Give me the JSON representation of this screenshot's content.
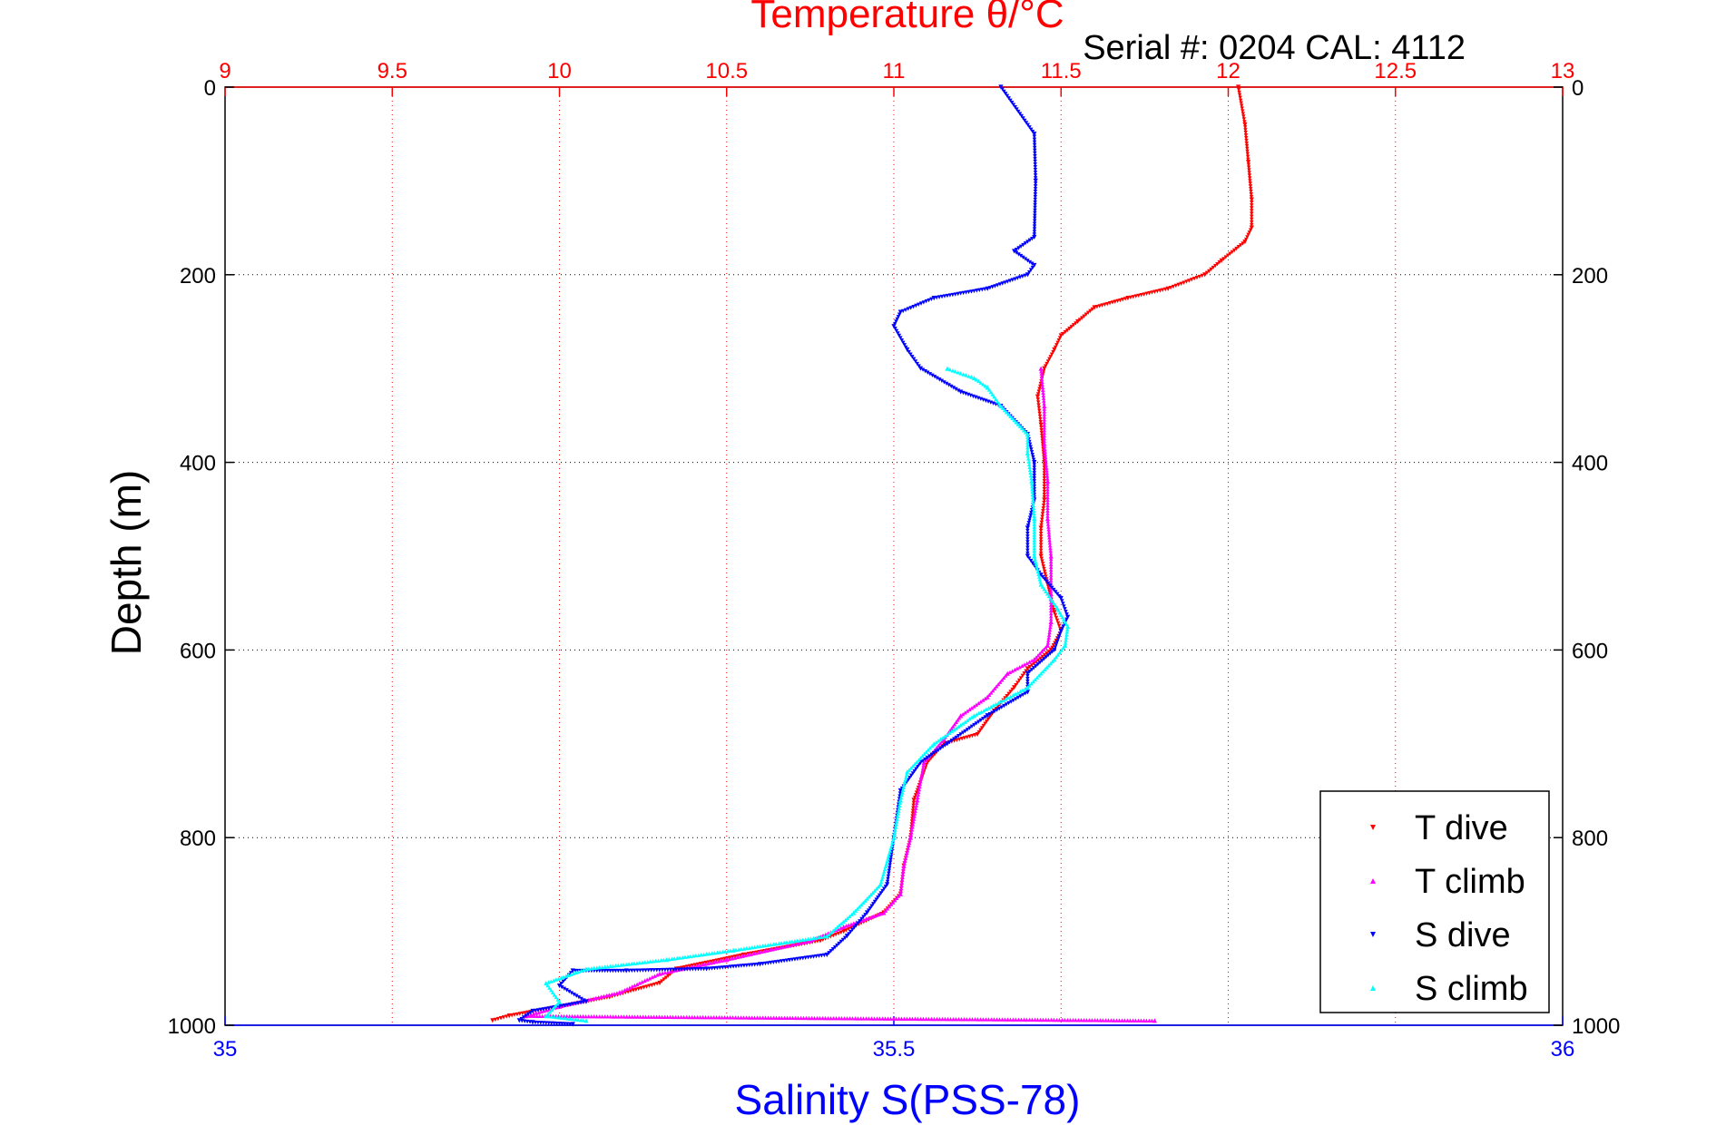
{
  "chart_data": {
    "type": "scatter",
    "title": "Temperature θ/°C",
    "subtitle": "Serial #: 0204  CAL: 4112",
    "xlabel": "Salinity S(PSS-78)",
    "ylabel": "Depth (m)",
    "temperature_axis": {
      "range": [
        9,
        13
      ],
      "ticks": [
        "9",
        "9.5",
        "10",
        "10.5",
        "11",
        "11.5",
        "12",
        "12.5",
        "13"
      ]
    },
    "salinity_axis": {
      "range": [
        35,
        36
      ],
      "ticks": [
        "35",
        "35.5",
        "36"
      ]
    },
    "depth_axis": {
      "range": [
        0,
        1000
      ],
      "reversed": true,
      "ticks": [
        "0",
        "200",
        "400",
        "600",
        "800",
        "1000"
      ]
    },
    "grid": true,
    "legend_position": "bottom-right",
    "series": [
      {
        "name": "T dive",
        "axis": "temperature",
        "color": "#ff0000",
        "marker": "triangle-down",
        "points": [
          [
            12.03,
            0
          ],
          [
            12.05,
            40
          ],
          [
            12.06,
            80
          ],
          [
            12.07,
            120
          ],
          [
            12.07,
            150
          ],
          [
            12.05,
            165
          ],
          [
            11.98,
            185
          ],
          [
            11.93,
            200
          ],
          [
            11.82,
            215
          ],
          [
            11.7,
            225
          ],
          [
            11.6,
            235
          ],
          [
            11.55,
            250
          ],
          [
            11.5,
            265
          ],
          [
            11.48,
            280
          ],
          [
            11.45,
            300
          ],
          [
            11.43,
            330
          ],
          [
            11.44,
            360
          ],
          [
            11.45,
            400
          ],
          [
            11.45,
            440
          ],
          [
            11.44,
            470
          ],
          [
            11.44,
            500
          ],
          [
            11.46,
            530
          ],
          [
            11.48,
            560
          ],
          [
            11.5,
            580
          ],
          [
            11.47,
            600
          ],
          [
            11.4,
            620
          ],
          [
            11.36,
            640
          ],
          [
            11.3,
            665
          ],
          [
            11.25,
            690
          ],
          [
            11.15,
            700
          ],
          [
            11.1,
            720
          ],
          [
            11.06,
            760
          ],
          [
            11.05,
            800
          ],
          [
            11.03,
            830
          ],
          [
            11.02,
            860
          ],
          [
            10.97,
            880
          ],
          [
            10.85,
            900
          ],
          [
            10.78,
            910
          ],
          [
            10.55,
            925
          ],
          [
            10.35,
            940
          ],
          [
            10.3,
            955
          ],
          [
            10.15,
            970
          ],
          [
            10.0,
            980
          ],
          [
            9.85,
            990
          ],
          [
            9.8,
            995
          ]
        ]
      },
      {
        "name": "T climb",
        "axis": "temperature",
        "color": "#ff00ff",
        "marker": "triangle-up",
        "points": [
          [
            11.78,
            995
          ],
          [
            9.9,
            990
          ],
          [
            10.0,
            980
          ],
          [
            10.18,
            965
          ],
          [
            10.3,
            945
          ],
          [
            10.5,
            930
          ],
          [
            10.75,
            910
          ],
          [
            10.85,
            895
          ],
          [
            10.97,
            880
          ],
          [
            11.02,
            860
          ],
          [
            11.03,
            830
          ],
          [
            11.05,
            800
          ],
          [
            11.07,
            760
          ],
          [
            11.09,
            720
          ],
          [
            11.15,
            695
          ],
          [
            11.2,
            670
          ],
          [
            11.28,
            650
          ],
          [
            11.34,
            625
          ],
          [
            11.42,
            610
          ],
          [
            11.46,
            595
          ],
          [
            11.47,
            570
          ],
          [
            11.47,
            540
          ],
          [
            11.47,
            500
          ],
          [
            11.46,
            460
          ],
          [
            11.46,
            420
          ],
          [
            11.45,
            380
          ],
          [
            11.45,
            340
          ],
          [
            11.44,
            300
          ]
        ]
      },
      {
        "name": "S dive",
        "axis": "salinity",
        "color": "#0000ff",
        "marker": "triangle-down",
        "points": [
          [
            35.58,
            0
          ],
          [
            35.605,
            50
          ],
          [
            35.606,
            100
          ],
          [
            35.605,
            160
          ],
          [
            35.59,
            175
          ],
          [
            35.605,
            190
          ],
          [
            35.6,
            200
          ],
          [
            35.57,
            215
          ],
          [
            35.53,
            225
          ],
          [
            35.505,
            240
          ],
          [
            35.5,
            255
          ],
          [
            35.51,
            280
          ],
          [
            35.52,
            300
          ],
          [
            35.55,
            325
          ],
          [
            35.58,
            340
          ],
          [
            35.6,
            370
          ],
          [
            35.605,
            400
          ],
          [
            35.605,
            440
          ],
          [
            35.6,
            470
          ],
          [
            35.6,
            500
          ],
          [
            35.61,
            520
          ],
          [
            35.625,
            545
          ],
          [
            35.63,
            565
          ],
          [
            35.625,
            580
          ],
          [
            35.62,
            600
          ],
          [
            35.6,
            625
          ],
          [
            35.6,
            645
          ],
          [
            35.57,
            670
          ],
          [
            35.54,
            700
          ],
          [
            35.52,
            720
          ],
          [
            35.505,
            750
          ],
          [
            35.5,
            800
          ],
          [
            35.495,
            850
          ],
          [
            35.48,
            880
          ],
          [
            35.465,
            905
          ],
          [
            35.45,
            925
          ],
          [
            35.4,
            935
          ],
          [
            35.36,
            940
          ],
          [
            35.3,
            942
          ],
          [
            35.26,
            942
          ],
          [
            35.25,
            958
          ],
          [
            35.27,
            975
          ],
          [
            35.23,
            985
          ],
          [
            35.22,
            995
          ],
          [
            35.23,
            997
          ],
          [
            35.26,
            999
          ]
        ]
      },
      {
        "name": "S climb",
        "axis": "salinity",
        "color": "#00ffff",
        "marker": "triangle-up",
        "points": [
          [
            35.27,
            995
          ],
          [
            35.24,
            990
          ],
          [
            35.25,
            975
          ],
          [
            35.24,
            955
          ],
          [
            35.27,
            940
          ],
          [
            35.33,
            930
          ],
          [
            35.38,
            920
          ],
          [
            35.45,
            905
          ],
          [
            35.47,
            880
          ],
          [
            35.49,
            850
          ],
          [
            35.5,
            800
          ],
          [
            35.505,
            760
          ],
          [
            35.51,
            730
          ],
          [
            35.53,
            700
          ],
          [
            35.56,
            670
          ],
          [
            35.6,
            640
          ],
          [
            35.62,
            610
          ],
          [
            35.628,
            595
          ],
          [
            35.63,
            575
          ],
          [
            35.622,
            555
          ],
          [
            35.61,
            530
          ],
          [
            35.605,
            500
          ],
          [
            35.605,
            460
          ],
          [
            35.603,
            420
          ],
          [
            35.6,
            390
          ],
          [
            35.6,
            370
          ],
          [
            35.58,
            340
          ],
          [
            35.57,
            320
          ],
          [
            35.56,
            310
          ],
          [
            35.54,
            300
          ]
        ]
      }
    ]
  }
}
